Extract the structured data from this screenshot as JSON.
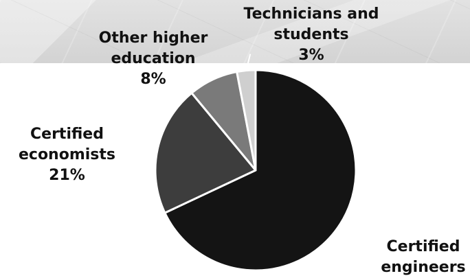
{
  "chart_data": {
    "type": "pie",
    "slices": [
      {
        "label_lines": [
          "Certified",
          "engineers"
        ],
        "value": 68,
        "value_label": "",
        "color": "#141414"
      },
      {
        "label_lines": [
          "Certified",
          "economists"
        ],
        "value": 21,
        "value_label": "21%",
        "color": "#3d3d3d"
      },
      {
        "label_lines": [
          "Other higher",
          "education"
        ],
        "value": 8,
        "value_label": "8%",
        "color": "#7a7a7a"
      },
      {
        "label_lines": [
          "Technicians and",
          "students"
        ],
        "value": 3,
        "value_label": "3%",
        "color": "#cfcfcf"
      }
    ],
    "legend": "none"
  }
}
